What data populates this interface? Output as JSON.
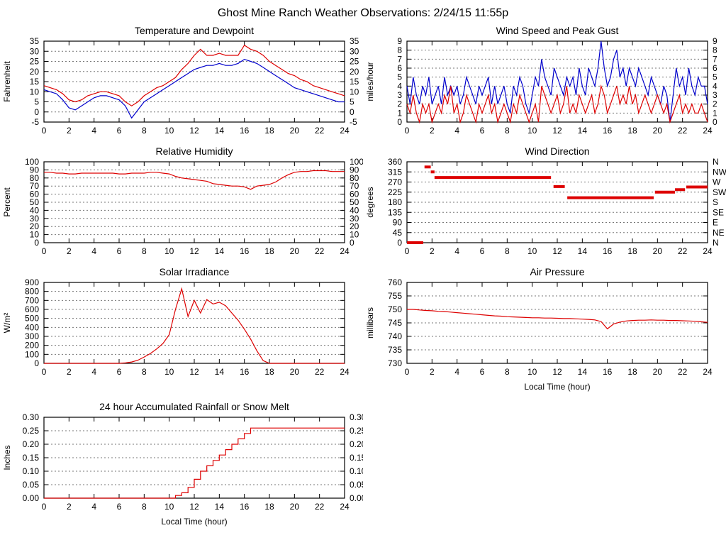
{
  "page_title": "Ghost Mine Ranch Weather Observations: 2/24/15 11:55p",
  "x_axis_label": "Local Time (hour)",
  "chart_data": [
    {
      "id": "temperature",
      "type": "line",
      "title": "Temperature and Dewpoint",
      "ylabel": "Fahrenheit",
      "ylim": [
        -5,
        35
      ],
      "ytick_step": 5,
      "ytick_decimals": 0,
      "right_labels": "values",
      "xlim": [
        0,
        24
      ],
      "xtick_step": 2,
      "series": [
        {
          "name": "temperature",
          "color": "#dd0000",
          "x_start": 0,
          "x_step": 0.5,
          "values": [
            13,
            12,
            11,
            9,
            6,
            5,
            6,
            8,
            9,
            10,
            10,
            9,
            8,
            5,
            3,
            5,
            8,
            10,
            12,
            13,
            15,
            17,
            21,
            24,
            28,
            31,
            28,
            28,
            29,
            28,
            28,
            28,
            33,
            31,
            30,
            28,
            25,
            23,
            21,
            19,
            18,
            16,
            15,
            13,
            12,
            11,
            10,
            9,
            8
          ]
        },
        {
          "name": "dewpoint",
          "color": "#0000cc",
          "x_start": 0,
          "x_step": 0.5,
          "values": [
            11,
            10,
            9,
            6,
            2,
            1,
            3,
            5,
            7,
            8,
            8,
            7,
            6,
            3,
            -3,
            1,
            5,
            7,
            9,
            11,
            13,
            15,
            17,
            19,
            21,
            22,
            23,
            23,
            24,
            23,
            23,
            24,
            26,
            25,
            24,
            22,
            20,
            18,
            16,
            14,
            12,
            11,
            10,
            9,
            8,
            7,
            6,
            5,
            5
          ]
        }
      ]
    },
    {
      "id": "wind_speed",
      "type": "line",
      "title": "Wind Speed and Peak Gust",
      "ylabel": "miles/hour",
      "ylim": [
        0,
        9
      ],
      "ytick_step": 1,
      "ytick_decimals": 0,
      "right_labels": "values",
      "xlim": [
        0,
        24
      ],
      "xtick_step": 2,
      "series": [
        {
          "name": "peak_gust",
          "color": "#0000cc",
          "x_start": 0,
          "x_step": 0.25,
          "values": [
            4,
            2,
            5,
            3,
            2,
            4,
            3,
            5,
            2,
            3,
            4,
            2,
            5,
            3,
            4,
            3,
            4,
            2,
            3,
            5,
            4,
            3,
            2,
            4,
            3,
            4,
            5,
            2,
            4,
            2,
            3,
            4,
            2,
            1,
            4,
            3,
            5,
            4,
            2,
            1,
            3,
            5,
            4,
            7,
            5,
            4,
            3,
            6,
            5,
            4,
            3,
            5,
            4,
            5,
            3,
            6,
            4,
            3,
            6,
            5,
            4,
            6,
            9,
            6,
            4,
            5,
            7,
            8,
            5,
            6,
            4,
            6,
            5,
            4,
            6,
            5,
            4,
            3,
            5,
            4,
            3,
            2,
            4,
            3,
            0,
            3,
            6,
            4,
            5,
            3,
            6,
            4,
            3,
            5,
            4,
            4,
            2
          ]
        },
        {
          "name": "wind_speed",
          "color": "#dd0000",
          "x_start": 0,
          "x_step": 0.25,
          "values": [
            2,
            1,
            3,
            1,
            0,
            2,
            1,
            2,
            0,
            1,
            2,
            1,
            3,
            2,
            4,
            1,
            2,
            0,
            1,
            3,
            2,
            1,
            0,
            2,
            1,
            2,
            3,
            1,
            2,
            0,
            1,
            2,
            1,
            0,
            2,
            1,
            3,
            2,
            1,
            0,
            1,
            2,
            0,
            4,
            3,
            2,
            1,
            2,
            3,
            1,
            2,
            4,
            1,
            2,
            1,
            3,
            2,
            1,
            2,
            3,
            1,
            2,
            4,
            3,
            1,
            2,
            3,
            4,
            2,
            3,
            2,
            4,
            2,
            3,
            1,
            2,
            3,
            2,
            1,
            2,
            3,
            2,
            1,
            2,
            0,
            1,
            2,
            3,
            1,
            2,
            1,
            2,
            1,
            1,
            2,
            1,
            0
          ]
        }
      ]
    },
    {
      "id": "humidity",
      "type": "line",
      "title": "Relative Humidity",
      "ylabel": "Percent",
      "ylim": [
        0,
        100
      ],
      "ytick_step": 10,
      "ytick_decimals": 0,
      "right_labels": "values",
      "xlim": [
        0,
        24
      ],
      "xtick_step": 2,
      "series": [
        {
          "name": "relative_humidity",
          "color": "#dd0000",
          "x_start": 0,
          "x_step": 0.5,
          "values": [
            87,
            87,
            86,
            86,
            85,
            85,
            86,
            86,
            86,
            86,
            86,
            86,
            85,
            85,
            86,
            86,
            86,
            87,
            87,
            86,
            85,
            82,
            80,
            79,
            78,
            77,
            76,
            73,
            72,
            71,
            70,
            70,
            69,
            66,
            70,
            71,
            72,
            75,
            80,
            84,
            87,
            88,
            88,
            89,
            89,
            89,
            88,
            88,
            88
          ]
        }
      ]
    },
    {
      "id": "wind_direction",
      "type": "segments",
      "title": "Wind Direction",
      "ylabel": "degrees",
      "ylim": [
        0,
        360
      ],
      "ytick_step": 45,
      "ytick_decimals": 0,
      "right_labels": "compass",
      "compass": [
        "N",
        "NE",
        "E",
        "SE",
        "S",
        "SW",
        "W",
        "NW",
        "N"
      ],
      "xlim": [
        0,
        24
      ],
      "xtick_step": 2,
      "color": "#dd0000",
      "segments": [
        {
          "x1": 0,
          "x2": 1.3,
          "y": 0
        },
        {
          "x1": 1.4,
          "x2": 1.9,
          "y": 337
        },
        {
          "x1": 1.9,
          "x2": 2.2,
          "y": 315
        },
        {
          "x1": 2.2,
          "x2": 11.5,
          "y": 290
        },
        {
          "x1": 11.7,
          "x2": 12.6,
          "y": 250
        },
        {
          "x1": 12.8,
          "x2": 19.7,
          "y": 200
        },
        {
          "x1": 19.8,
          "x2": 21.4,
          "y": 225
        },
        {
          "x1": 21.4,
          "x2": 22.2,
          "y": 236
        },
        {
          "x1": 22.3,
          "x2": 24,
          "y": 248
        }
      ]
    },
    {
      "id": "solar",
      "type": "line",
      "title": "Solar Irradiance",
      "ylabel": "W/m²",
      "ylim": [
        0,
        900
      ],
      "ytick_step": 100,
      "ytick_decimals": 0,
      "right_labels": null,
      "xlim": [
        0,
        24
      ],
      "xtick_step": 2,
      "series": [
        {
          "name": "solar_irradiance",
          "color": "#dd0000",
          "x_start": 0,
          "x_step": 0.5,
          "values": [
            0,
            0,
            0,
            0,
            0,
            0,
            0,
            0,
            0,
            0,
            0,
            0,
            0,
            5,
            15,
            35,
            70,
            110,
            160,
            220,
            320,
            600,
            830,
            520,
            700,
            560,
            710,
            660,
            680,
            640,
            560,
            480,
            380,
            270,
            140,
            30,
            0,
            0,
            0,
            0,
            0,
            0,
            0,
            0,
            0,
            0,
            0,
            0,
            0
          ]
        }
      ]
    },
    {
      "id": "pressure",
      "type": "line",
      "title": "Air Pressure",
      "ylabel": "millibars",
      "ylim": [
        730,
        760
      ],
      "ytick_step": 5,
      "ytick_decimals": 0,
      "right_labels": null,
      "xlim": [
        0,
        24
      ],
      "xtick_step": 2,
      "xlabel": "Local Time (hour)",
      "series": [
        {
          "name": "air_pressure",
          "color": "#dd0000",
          "x_start": 0,
          "x_step": 0.5,
          "values": [
            750,
            750,
            749.8,
            749.6,
            749.5,
            749.3,
            749.2,
            749,
            748.8,
            748.6,
            748.4,
            748.2,
            748,
            747.8,
            747.6,
            747.5,
            747.3,
            747.2,
            747.1,
            747,
            746.9,
            746.9,
            746.8,
            746.8,
            746.7,
            746.6,
            746.6,
            746.5,
            746.4,
            746.3,
            746.1,
            745.5,
            742.8,
            744.6,
            745.3,
            745.7,
            745.9,
            746,
            746,
            746.1,
            746,
            746,
            745.9,
            745.9,
            745.8,
            745.7,
            745.6,
            745.4,
            745.2
          ]
        }
      ]
    },
    {
      "id": "rainfall",
      "type": "line",
      "step": true,
      "title": "24 hour Accumulated Rainfall or Snow Melt",
      "ylabel": "Inches",
      "ylim": [
        0,
        0.3
      ],
      "ytick_step": 0.05,
      "ytick_decimals": 2,
      "right_labels": "values",
      "xlim": [
        0,
        24
      ],
      "xtick_step": 2,
      "xlabel": "Local Time (hour)",
      "series": [
        {
          "name": "accumulated_rainfall",
          "color": "#dd0000",
          "x_start": 0,
          "x_step": 0.5,
          "values": [
            0,
            0,
            0,
            0,
            0,
            0,
            0,
            0,
            0,
            0,
            0,
            0,
            0,
            0,
            0,
            0,
            0,
            0,
            0,
            0,
            0,
            0.01,
            0.02,
            0.04,
            0.07,
            0.1,
            0.12,
            0.14,
            0.16,
            0.18,
            0.2,
            0.22,
            0.24,
            0.26,
            0.26,
            0.26,
            0.26,
            0.26,
            0.26,
            0.26,
            0.26,
            0.26,
            0.26,
            0.26,
            0.26,
            0.26,
            0.26,
            0.26,
            0.26
          ]
        }
      ]
    }
  ]
}
